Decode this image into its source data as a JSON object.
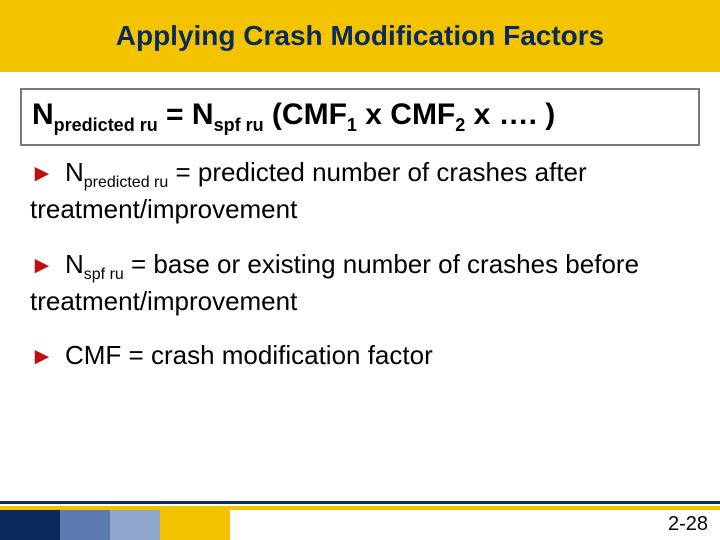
{
  "header": {
    "title": "Applying Crash Modification Factors",
    "bg_color": "#f4c300",
    "title_color": "#0a2a5c"
  },
  "formula": {
    "n_var": "N",
    "sub_predicted": "predicted ru",
    "eq": " = ",
    "sub_spf": "spf ru",
    "open": " (CMF",
    "sub1": "1",
    "mid1": " x CMF",
    "sub2": "2",
    "tail": " x …. )"
  },
  "bullets": [
    {
      "arrow": "►",
      "var": "N",
      "sub": "predicted ru",
      "rest": " = predicted number of crashes after treatment/improvement"
    },
    {
      "arrow": "►",
      "var": "N",
      "sub": "spf ru",
      "rest": " = base or existing number of crashes before treatment/improvement"
    },
    {
      "arrow": "►",
      "var": "",
      "sub": "",
      "rest": "CMF = crash modification factor"
    }
  ],
  "footer": {
    "page": "2-28"
  }
}
